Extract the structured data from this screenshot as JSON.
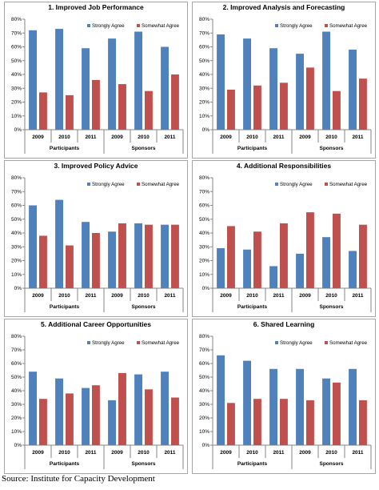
{
  "source_text": "Source: Institute for Capacity Development",
  "colors": {
    "strongly": "#4F81BD",
    "somewhat": "#C0504D",
    "axis": "#868686",
    "frame": "#a6a6a6"
  },
  "chart_data": [
    {
      "type": "bar",
      "title": "1. Improved Job Performance",
      "categories": [
        "2009",
        "2010",
        "2011",
        "2009",
        "2010",
        "2011"
      ],
      "groups": [
        "Participants",
        "Sponsors"
      ],
      "ylim": [
        0,
        80
      ],
      "yticks": [
        "0%",
        "10%",
        "20%",
        "30%",
        "40%",
        "50%",
        "60%",
        "70%",
        "80%"
      ],
      "legend_position": "top-right",
      "series": [
        {
          "name": "Strongly Agree",
          "values": [
            72,
            73,
            59,
            66,
            71,
            60
          ]
        },
        {
          "name": "Somewhat Agree",
          "values": [
            27,
            25,
            36,
            33,
            28,
            40
          ]
        }
      ]
    },
    {
      "type": "bar",
      "title": "2. Improved Analysis and Forecasting",
      "categories": [
        "2009",
        "2010",
        "2011",
        "2009",
        "2010",
        "2011"
      ],
      "groups": [
        "Participants",
        "Sponsors"
      ],
      "ylim": [
        0,
        80
      ],
      "yticks": [
        "0%",
        "10%",
        "20%",
        "30%",
        "40%",
        "50%",
        "60%",
        "70%",
        "80%"
      ],
      "legend_position": "top-right",
      "series": [
        {
          "name": "Strongly Agree",
          "values": [
            69,
            66,
            59,
            55,
            71,
            58
          ]
        },
        {
          "name": "Somewhat Agree",
          "values": [
            29,
            32,
            34,
            45,
            28,
            37
          ]
        }
      ]
    },
    {
      "type": "bar",
      "title": "3. Improved Policy Advice",
      "categories": [
        "2009",
        "2010",
        "2011",
        "2009",
        "2010",
        "2011"
      ],
      "groups": [
        "Participants",
        "Sponsors"
      ],
      "ylim": [
        0,
        80
      ],
      "yticks": [
        "0%",
        "10%",
        "20%",
        "30%",
        "40%",
        "50%",
        "60%",
        "70%",
        "80%"
      ],
      "legend_position": "top-right",
      "series": [
        {
          "name": "Strongly Agree",
          "values": [
            60,
            64,
            48,
            41,
            47,
            46
          ]
        },
        {
          "name": "Somewhat Agree",
          "values": [
            38,
            31,
            40,
            47,
            46,
            46
          ]
        }
      ]
    },
    {
      "type": "bar",
      "title": "4. Additional Responsibilities",
      "categories": [
        "2009",
        "2010",
        "2011",
        "2009",
        "2010",
        "2011"
      ],
      "groups": [
        "Participants",
        "Sponsors"
      ],
      "ylim": [
        0,
        80
      ],
      "yticks": [
        "0%",
        "10%",
        "20%",
        "30%",
        "40%",
        "50%",
        "60%",
        "70%",
        "80%"
      ],
      "legend_position": "top-right",
      "series": [
        {
          "name": "Strongly Agree",
          "values": [
            29,
            28,
            16,
            25,
            37,
            27
          ]
        },
        {
          "name": "Somewhat Agree",
          "values": [
            45,
            41,
            47,
            55,
            54,
            46
          ]
        }
      ]
    },
    {
      "type": "bar",
      "title": "5. Additional Career Opportunities",
      "categories": [
        "2009",
        "2010",
        "2011",
        "2009",
        "2010",
        "2011"
      ],
      "groups": [
        "Participants",
        "Sponsors"
      ],
      "ylim": [
        0,
        80
      ],
      "yticks": [
        "0%",
        "10%",
        "20%",
        "30%",
        "40%",
        "50%",
        "60%",
        "70%",
        "80%"
      ],
      "legend_position": "top-right",
      "series": [
        {
          "name": "Strongly Agree",
          "values": [
            54,
            49,
            42,
            33,
            52,
            54
          ]
        },
        {
          "name": "Somewhat Agree",
          "values": [
            34,
            38,
            44,
            53,
            41,
            35
          ]
        }
      ]
    },
    {
      "type": "bar",
      "title": "6. Shared Learning",
      "categories": [
        "2009",
        "2010",
        "2011",
        "2009",
        "2010",
        "2011"
      ],
      "groups": [
        "Participants",
        "Sponsors"
      ],
      "ylim": [
        0,
        80
      ],
      "yticks": [
        "0%",
        "10%",
        "20%",
        "30%",
        "40%",
        "50%",
        "60%",
        "70%",
        "80%"
      ],
      "legend_position": "top-right",
      "series": [
        {
          "name": "Strongly Agree",
          "values": [
            66,
            62,
            56,
            56,
            49,
            56
          ]
        },
        {
          "name": "Somewhat Agree",
          "values": [
            31,
            34,
            34,
            33,
            46,
            33
          ]
        }
      ]
    }
  ]
}
